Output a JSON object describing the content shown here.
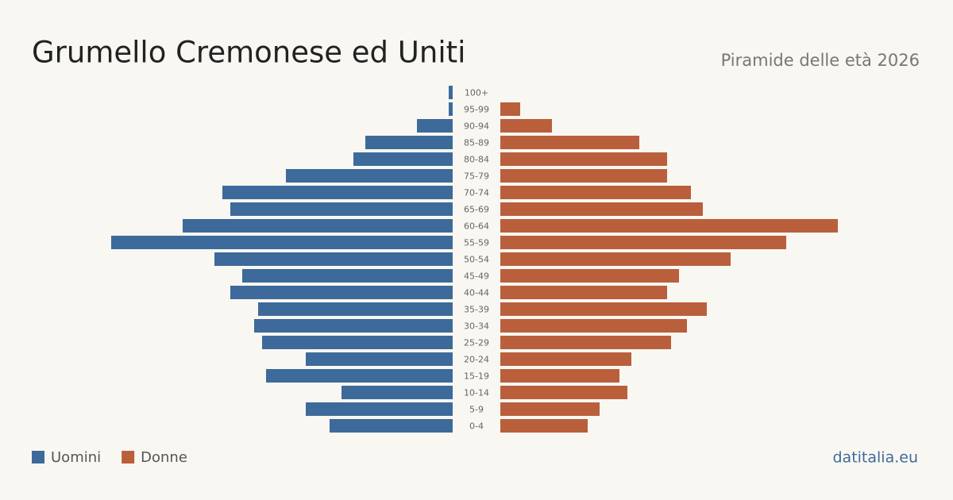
{
  "chart_data": {
    "type": "pyramid",
    "title": "Grumello Cremonese ed Uniti",
    "subtitle": "Piramide delle età 2026",
    "source": "datitalia.eu",
    "categories": [
      "100+",
      "95-99",
      "90-94",
      "85-89",
      "80-84",
      "75-79",
      "70-74",
      "65-69",
      "60-64",
      "55-59",
      "50-54",
      "45-49",
      "40-44",
      "35-39",
      "30-34",
      "25-29",
      "20-24",
      "15-19",
      "10-14",
      "5-9",
      "0-4"
    ],
    "series": [
      {
        "name": "Uomini",
        "color": "#3d6a9a",
        "values": [
          1,
          1,
          9,
          22,
          25,
          42,
          58,
          56,
          68,
          86,
          60,
          53,
          56,
          49,
          50,
          48,
          37,
          47,
          28,
          37,
          31
        ]
      },
      {
        "name": "Donne",
        "color": "#b95f3c",
        "values": [
          0,
          5,
          13,
          35,
          42,
          42,
          48,
          51,
          85,
          72,
          58,
          45,
          42,
          52,
          47,
          43,
          33,
          30,
          32,
          25,
          22
        ]
      }
    ]
  }
}
